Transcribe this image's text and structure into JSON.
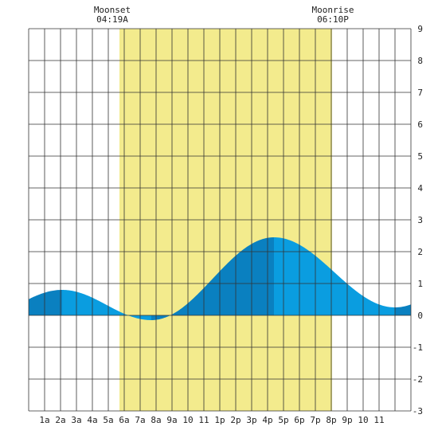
{
  "moon": {
    "moonset_label": "Moonset",
    "moonset_time": "04:19A",
    "moonrise_label": "Moonrise",
    "moonrise_time": "06:10P"
  },
  "colors": {
    "daylight": "#f3eb8d",
    "tide_fill": "#0a9de0",
    "tide_fill_dark": "#0a80c0",
    "grid": "#333333",
    "background": "#ffffff"
  },
  "chart_data": {
    "type": "area",
    "title": "",
    "xlabel": "",
    "ylabel": "",
    "x_unit": "hour",
    "xlim": [
      0,
      24
    ],
    "ylim": [
      -3,
      9
    ],
    "x_tick_labels": [
      "1a",
      "2a",
      "3a",
      "4a",
      "5a",
      "6a",
      "7a",
      "8a",
      "9a",
      "10",
      "11",
      "1p",
      "2p",
      "3p",
      "4p",
      "5p",
      "6p",
      "7p",
      "8p",
      "9p",
      "10",
      "11"
    ],
    "y_ticks": [
      9,
      8,
      7,
      6,
      5,
      4,
      3,
      2,
      1,
      0,
      -1,
      -2,
      -3
    ],
    "daylight": {
      "start_hour": 5.7,
      "end_hour": 19.05
    },
    "tide_events": [
      {
        "hour": 2.1,
        "height": 0.8,
        "type": "high"
      },
      {
        "hour": 7.7,
        "height": -0.15,
        "type": "low"
      },
      {
        "hour": 15.4,
        "height": 2.45,
        "type": "high"
      },
      {
        "hour": 23.0,
        "height": 0.25,
        "type": "low"
      }
    ],
    "series": [
      {
        "values": [
          [
            0,
            0.58
          ],
          [
            2.1,
            0.8
          ],
          [
            4.9,
            0.3
          ],
          [
            7.7,
            -0.15
          ],
          [
            11.5,
            1.15
          ],
          [
            15.4,
            2.45
          ],
          [
            19.2,
            1.3
          ],
          [
            23.0,
            0.25
          ],
          [
            24,
            0.35
          ]
        ]
      }
    ],
    "grid": true
  }
}
